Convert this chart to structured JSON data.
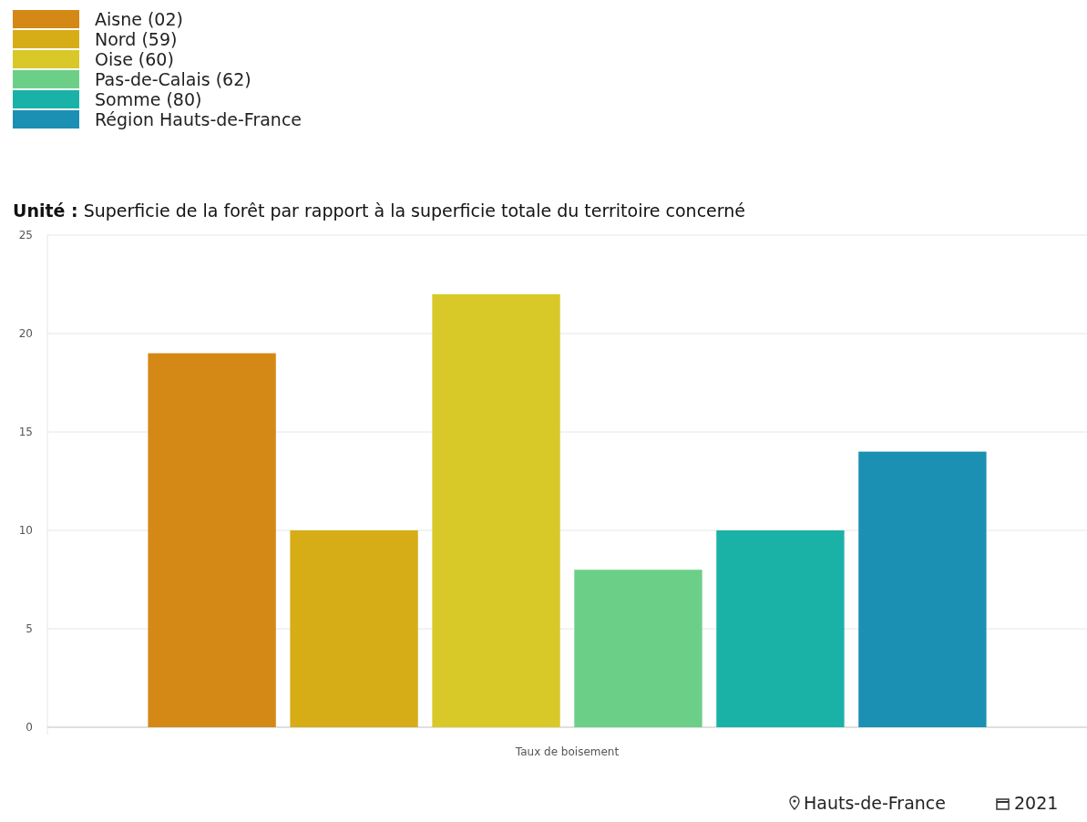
{
  "chart_data": {
    "type": "bar",
    "title": "Unité : Superficie de la forêt par rapport à la superficie totale du territoire concerné",
    "categories": [
      "Taux de boisement"
    ],
    "series": [
      {
        "name": "Aisne (02)",
        "color": "#d48816",
        "values": [
          19
        ]
      },
      {
        "name": "Nord (59)",
        "color": "#d6ad17",
        "values": [
          10
        ]
      },
      {
        "name": "Oise (60)",
        "color": "#d8c928",
        "values": [
          22
        ]
      },
      {
        "name": "Pas-de-Calais (62)",
        "color": "#6ccf88",
        "values": [
          8
        ]
      },
      {
        "name": "Somme (80)",
        "color": "#1ab2a6",
        "values": [
          10
        ]
      },
      {
        "name": "Région Hauts-de-France",
        "color": "#1b90b2",
        "values": [
          14
        ]
      }
    ],
    "ylim": [
      0,
      25
    ],
    "yticks": [
      0,
      5,
      10,
      15,
      20,
      25
    ],
    "grid": "y",
    "legend": "top left",
    "annotations": [
      "Hauts-de-France",
      "2021"
    ]
  }
}
